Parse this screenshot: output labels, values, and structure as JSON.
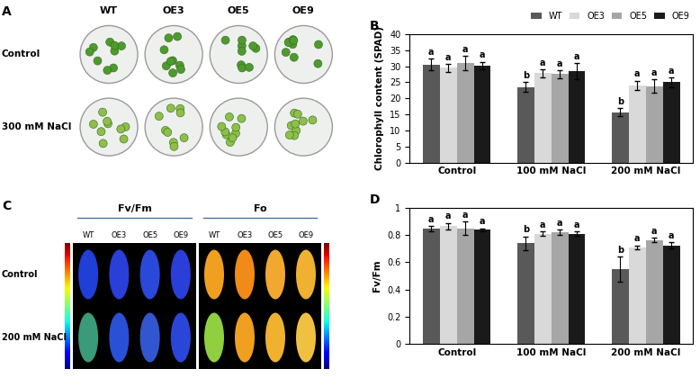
{
  "chart_data": [
    {
      "type": "bar",
      "annotations": [
        "B"
      ],
      "y_label": "Chlorophyll content (SPAD)",
      "categories": [
        "Control",
        "100 mM NaCl",
        "200 mM NaCl"
      ],
      "series": [
        {
          "name": "WT",
          "color": "#595959",
          "values": [
            30.5,
            23.5,
            15.7
          ],
          "errors": [
            1.8,
            1.5,
            1.2
          ],
          "annotations": [
            "a",
            "b",
            "b"
          ]
        },
        {
          "name": "OE3",
          "color": "#d9d9d9",
          "values": [
            29.5,
            27.8,
            24.0
          ],
          "errors": [
            1.2,
            1.2,
            1.5
          ],
          "annotations": [
            "a",
            "a",
            "a"
          ]
        },
        {
          "name": "OE5",
          "color": "#a6a6a6",
          "values": [
            31.0,
            27.5,
            23.8
          ],
          "errors": [
            2.2,
            1.2,
            2.0
          ],
          "annotations": [
            "a",
            "a",
            "a"
          ]
        },
        {
          "name": "OE9",
          "color": "#1a1a1a",
          "values": [
            30.2,
            28.5,
            25.0
          ],
          "errors": [
            1.2,
            2.5,
            1.5
          ],
          "annotations": [
            "a",
            "a",
            "a"
          ]
        }
      ],
      "ylim": [
        0,
        40
      ],
      "yticks": [
        0,
        5,
        10,
        15,
        20,
        25,
        30,
        35,
        40
      ],
      "grid": false,
      "legend": "upper right"
    },
    {
      "type": "bar",
      "annotations": [
        "D"
      ],
      "y_label": "Fv/Fm",
      "categories": [
        "Control",
        "100 mM NaCl",
        "200 mM NaCl"
      ],
      "series": [
        {
          "name": "WT",
          "color": "#595959",
          "values": [
            0.845,
            0.74,
            0.55
          ],
          "errors": [
            0.02,
            0.05,
            0.09
          ],
          "annotations": [
            "a",
            "b",
            "b"
          ]
        },
        {
          "name": "OE3",
          "color": "#d9d9d9",
          "values": [
            0.865,
            0.81,
            0.71
          ],
          "errors": [
            0.025,
            0.015,
            0.015
          ],
          "annotations": [
            "a",
            "a",
            "a"
          ]
        },
        {
          "name": "OE5",
          "color": "#a6a6a6",
          "values": [
            0.85,
            0.82,
            0.765
          ],
          "errors": [
            0.05,
            0.02,
            0.015
          ],
          "annotations": [
            "a",
            "a",
            "a"
          ]
        },
        {
          "name": "OE9",
          "color": "#1a1a1a",
          "values": [
            0.84,
            0.81,
            0.725
          ],
          "errors": [
            0.01,
            0.015,
            0.025
          ],
          "annotations": [
            "a",
            "a",
            "a"
          ]
        }
      ],
      "ylim": [
        0,
        1
      ],
      "yticks": [
        0,
        0.2,
        0.4,
        0.6,
        0.8,
        1
      ],
      "grid": false
    }
  ],
  "image_panels": [
    {
      "label": "A",
      "columns": [
        "WT",
        "OE3",
        "OE5",
        "OE9"
      ],
      "rows": [
        "Control",
        "300 mM NaCl"
      ]
    },
    {
      "label": "C",
      "groups": [
        "Fv/Fm",
        "Fo"
      ],
      "columns": [
        "WT",
        "OE3",
        "OE5",
        "OE9"
      ],
      "rows": [
        "Control",
        "200 mM NaCl"
      ]
    }
  ]
}
